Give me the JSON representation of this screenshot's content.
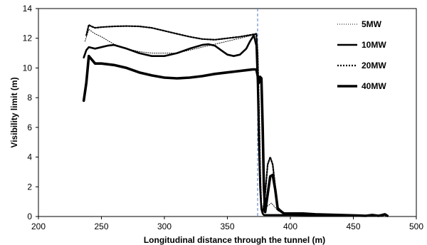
{
  "chart_data": {
    "type": "line",
    "title": "",
    "xlabel": "Longitudinal distance through the tunnel (m)",
    "ylabel": "Visibility limit (m)",
    "xlim": [
      200,
      500
    ],
    "ylim": [
      0,
      14
    ],
    "xticks": [
      "200",
      "250",
      "300",
      "350",
      "400",
      "450",
      "500"
    ],
    "yticks": [
      "0",
      "2",
      "4",
      "6",
      "8",
      "10",
      "12",
      "14"
    ],
    "grid": false,
    "legend_position": "top-right",
    "vertical_marker_x": 374,
    "series": [
      {
        "name": "5MW",
        "style": "dotted-thin",
        "x": [
          237,
          240,
          245,
          250,
          260,
          270,
          280,
          290,
          300,
          310,
          320,
          330,
          340,
          350,
          360,
          370,
          373,
          374,
          375,
          376,
          377,
          378,
          380,
          385,
          390,
          395,
          400,
          410,
          420,
          440,
          460,
          470
        ],
        "y": [
          11.8,
          12.6,
          12.3,
          12.1,
          11.6,
          11.3,
          11.1,
          11.0,
          11.0,
          11.0,
          11.2,
          11.4,
          11.6,
          11.8,
          12.0,
          12.2,
          12.3,
          11.0,
          8.0,
          4.0,
          1.0,
          0.3,
          0.6,
          0.9,
          0.4,
          0.2,
          0.15,
          0.12,
          0.1,
          0.08,
          0.05,
          0.05
        ]
      },
      {
        "name": "10MW",
        "style": "solid-thick",
        "x": [
          236,
          238,
          240,
          245,
          250,
          255,
          260,
          270,
          280,
          290,
          300,
          310,
          320,
          330,
          335,
          340,
          345,
          350,
          355,
          360,
          365,
          368,
          371,
          373,
          374,
          375,
          376,
          377,
          378,
          379,
          380,
          385,
          390,
          400,
          420,
          440,
          470
        ],
        "y": [
          10.7,
          11.2,
          11.4,
          11.3,
          11.4,
          11.5,
          11.55,
          11.3,
          11.0,
          10.8,
          10.8,
          11.0,
          11.3,
          11.55,
          11.6,
          11.5,
          11.2,
          10.9,
          10.8,
          10.9,
          11.3,
          11.8,
          12.2,
          11.5,
          9.0,
          5.0,
          2.0,
          0.5,
          0.2,
          0.1,
          0.1,
          0.1,
          0.1,
          0.1,
          0.08,
          0.05,
          0.05
        ]
      },
      {
        "name": "20MW",
        "style": "dotted-thick",
        "x": [
          238,
          240,
          242,
          245,
          250,
          260,
          270,
          280,
          290,
          300,
          310,
          320,
          330,
          340,
          350,
          360,
          370,
          373,
          374,
          375,
          376,
          377,
          378,
          380,
          382,
          384,
          386,
          388,
          390,
          395,
          400,
          420,
          440,
          470
        ],
        "y": [
          12.2,
          12.9,
          12.8,
          12.7,
          12.75,
          12.8,
          12.82,
          12.8,
          12.7,
          12.5,
          12.3,
          12.1,
          11.95,
          11.9,
          12.0,
          12.1,
          12.25,
          12.3,
          11.0,
          7.5,
          3.0,
          0.5,
          0.2,
          1.5,
          3.5,
          4.0,
          3.5,
          2.0,
          0.6,
          0.2,
          0.15,
          0.1,
          0.08,
          0.05
        ]
      },
      {
        "name": "40MW",
        "style": "solid-extra-thick",
        "x": [
          236,
          238,
          240,
          242,
          245,
          250,
          260,
          270,
          280,
          290,
          300,
          310,
          320,
          330,
          340,
          350,
          360,
          365,
          370,
          373,
          374,
          375,
          376,
          377,
          378,
          379,
          380,
          382,
          384,
          386,
          388,
          390,
          395,
          400,
          410,
          420,
          440,
          460,
          465,
          470,
          473,
          475,
          477
        ],
        "y": [
          7.8,
          9.0,
          10.8,
          10.6,
          10.3,
          10.3,
          10.2,
          10.0,
          9.7,
          9.5,
          9.35,
          9.3,
          9.35,
          9.45,
          9.6,
          9.7,
          9.8,
          9.85,
          9.9,
          9.9,
          9.5,
          9.0,
          9.4,
          9.3,
          6.0,
          2.0,
          0.3,
          1.5,
          2.7,
          2.8,
          1.8,
          0.5,
          0.2,
          0.2,
          0.2,
          0.15,
          0.1,
          0.05,
          0.1,
          0.05,
          0.1,
          0.15,
          0.05
        ]
      }
    ]
  }
}
